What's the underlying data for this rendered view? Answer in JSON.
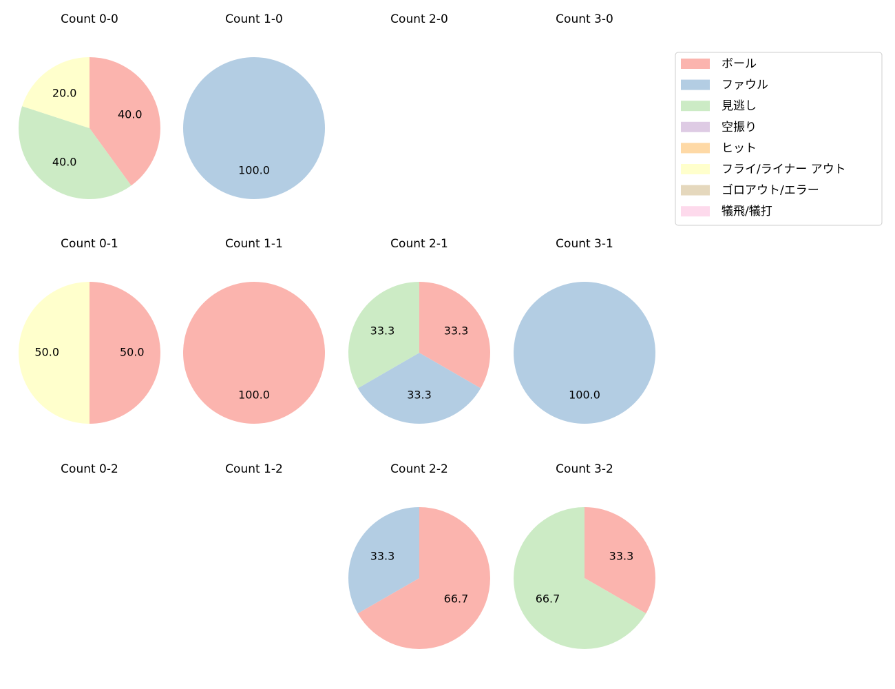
{
  "legend": {
    "labels": [
      "ボール",
      "ファウル",
      "見逃し",
      "空振り",
      "ヒット",
      "フライ/ライナー アウト",
      "ゴロアウト/エラー",
      "犠飛/犠打"
    ],
    "colors": [
      "#fbb4ae",
      "#b3cde3",
      "#ccebc5",
      "#decbe4",
      "#fed9a6",
      "#ffffcc",
      "#e5d8bd",
      "#fddaec"
    ]
  },
  "chart_data": [
    {
      "type": "pie",
      "title": "Count 0-0",
      "values": [
        40,
        null,
        40,
        null,
        null,
        20,
        null,
        null
      ],
      "value_labels": [
        "40.0",
        null,
        "40.0",
        null,
        null,
        "20.0",
        null,
        null
      ]
    },
    {
      "type": "pie",
      "title": "Count 1-0",
      "values": [
        null,
        100,
        null,
        null,
        null,
        null,
        null,
        null
      ],
      "value_labels": [
        null,
        "100.0",
        null,
        null,
        null,
        null,
        null,
        null
      ]
    },
    {
      "type": "pie",
      "title": "Count 2-0",
      "values": [
        null,
        null,
        null,
        null,
        null,
        null,
        null,
        null
      ],
      "value_labels": [
        null,
        null,
        null,
        null,
        null,
        null,
        null,
        null
      ]
    },
    {
      "type": "pie",
      "title": "Count 3-0",
      "values": [
        null,
        null,
        null,
        null,
        null,
        null,
        null,
        null
      ],
      "value_labels": [
        null,
        null,
        null,
        null,
        null,
        null,
        null,
        null
      ]
    },
    {
      "type": "pie",
      "title": "Count 0-1",
      "values": [
        50,
        null,
        null,
        null,
        null,
        50,
        null,
        null
      ],
      "value_labels": [
        "50.0",
        null,
        null,
        null,
        null,
        "50.0",
        null,
        null
      ]
    },
    {
      "type": "pie",
      "title": "Count 1-1",
      "values": [
        100,
        null,
        null,
        null,
        null,
        null,
        null,
        null
      ],
      "value_labels": [
        "100.0",
        null,
        null,
        null,
        null,
        null,
        null,
        null
      ]
    },
    {
      "type": "pie",
      "title": "Count 2-1",
      "values": [
        33.3,
        33.3,
        33.3,
        null,
        null,
        null,
        null,
        null
      ],
      "value_labels": [
        "33.3",
        "33.3",
        "33.3",
        null,
        null,
        null,
        null,
        null
      ]
    },
    {
      "type": "pie",
      "title": "Count 3-1",
      "values": [
        null,
        100,
        null,
        null,
        null,
        null,
        null,
        null
      ],
      "value_labels": [
        null,
        "100.0",
        null,
        null,
        null,
        null,
        null,
        null
      ]
    },
    {
      "type": "pie",
      "title": "Count 0-2",
      "values": [
        null,
        null,
        null,
        null,
        null,
        null,
        null,
        null
      ],
      "value_labels": [
        null,
        null,
        null,
        null,
        null,
        null,
        null,
        null
      ]
    },
    {
      "type": "pie",
      "title": "Count 1-2",
      "values": [
        null,
        null,
        null,
        null,
        null,
        null,
        null,
        null
      ],
      "value_labels": [
        null,
        null,
        null,
        null,
        null,
        null,
        null,
        null
      ]
    },
    {
      "type": "pie",
      "title": "Count 2-2",
      "values": [
        66.7,
        33.3,
        null,
        null,
        null,
        null,
        null,
        null
      ],
      "value_labels": [
        "66.7",
        "33.3",
        null,
        null,
        null,
        null,
        null,
        null
      ]
    },
    {
      "type": "pie",
      "title": "Count 3-2",
      "values": [
        33.3,
        null,
        66.7,
        null,
        null,
        null,
        null,
        null
      ],
      "value_labels": [
        "33.3",
        null,
        "66.7",
        null,
        null,
        null,
        null,
        null
      ]
    }
  ]
}
